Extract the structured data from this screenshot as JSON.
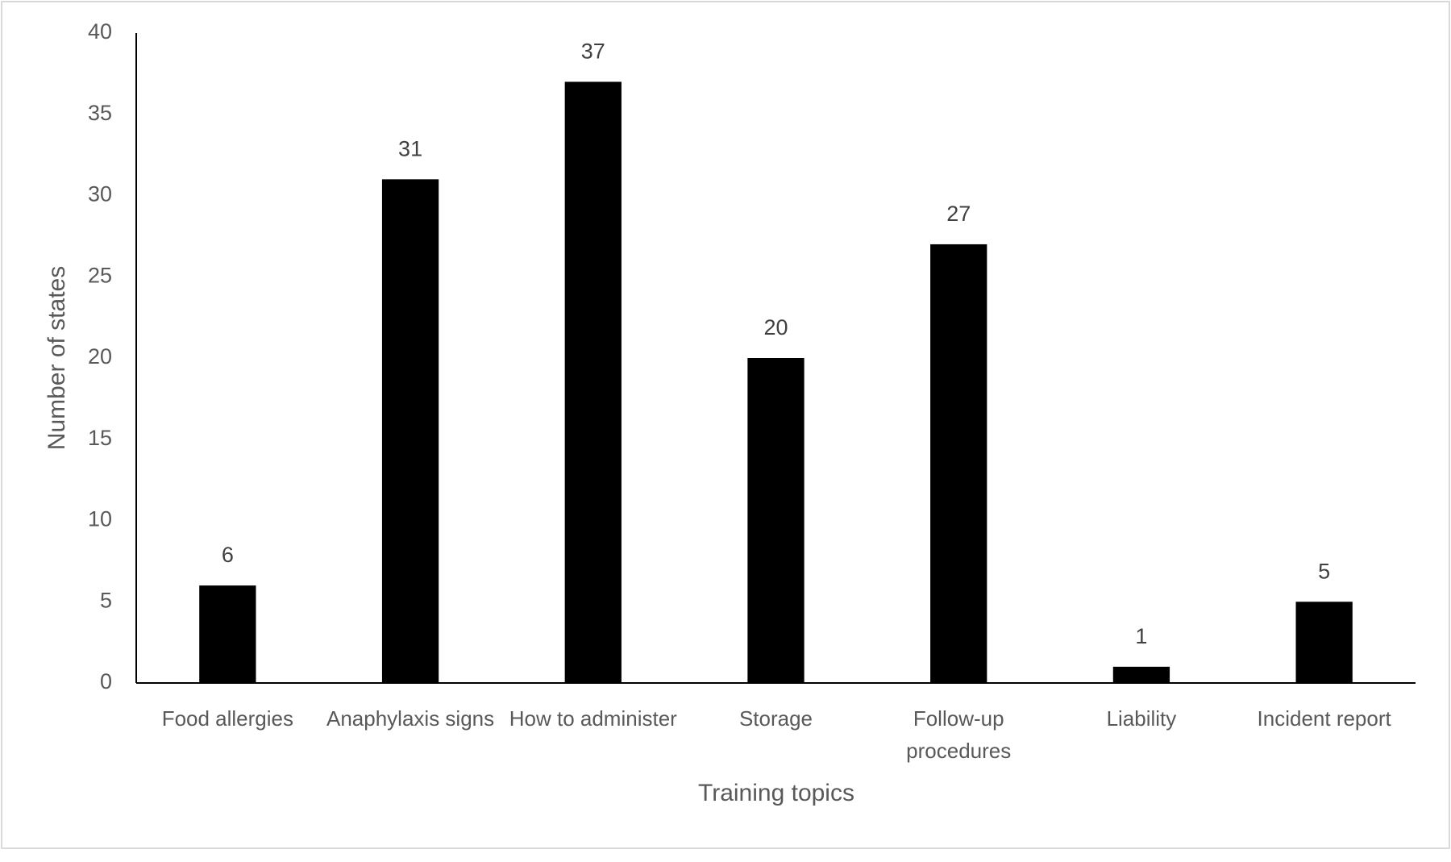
{
  "chart_data": {
    "type": "bar",
    "x_label": "Training topics",
    "y_label": "Number of states",
    "categories": [
      "Food allergies",
      "Anaphylaxis signs",
      "How to administer",
      "Storage",
      "Follow-up procedures",
      "Liability",
      "Incident report"
    ],
    "values": [
      6,
      31,
      37,
      20,
      27,
      1,
      5
    ],
    "color": "#000000",
    "ylim": [
      0,
      40
    ],
    "yticks": [
      0,
      5,
      10,
      15,
      20,
      25,
      30,
      35,
      40
    ],
    "grid": false,
    "data_labels": true
  }
}
